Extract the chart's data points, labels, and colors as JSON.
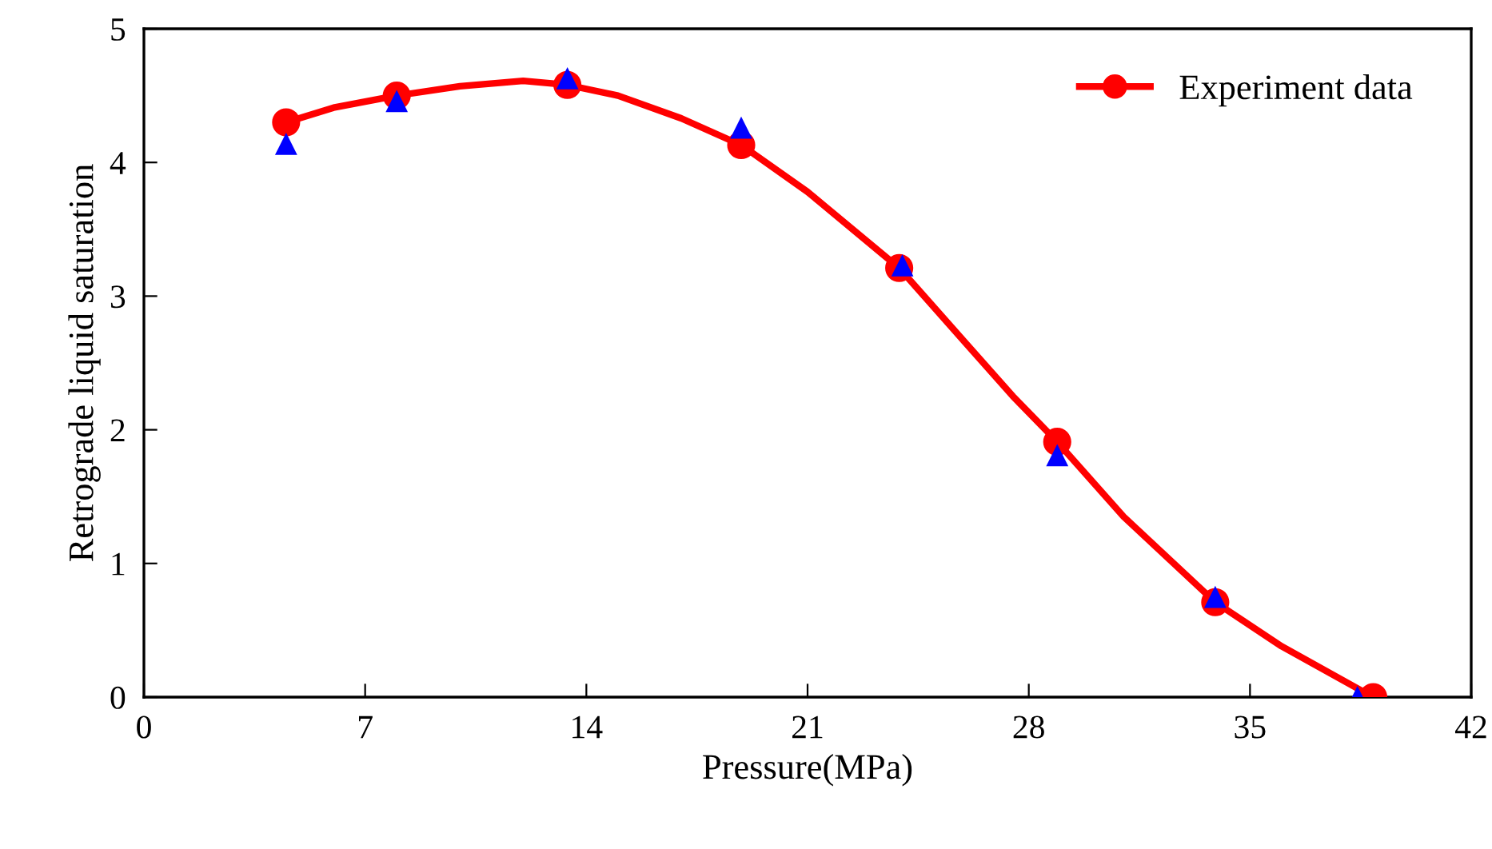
{
  "chart_data": {
    "type": "line",
    "xlabel": "Pressure(MPa)",
    "ylabel": "Retrograde liquid saturation",
    "xlim": [
      0,
      42
    ],
    "xticks": [
      0,
      7,
      14,
      21,
      28,
      35,
      42
    ],
    "ylim": [
      0,
      5
    ],
    "yticks": [
      0,
      1,
      2,
      3,
      4,
      5
    ],
    "grid": false,
    "legend": "top right",
    "series": [
      {
        "color": "#ff0000",
        "line_style": "solid",
        "marker": "none",
        "x": [
          4.5,
          6,
          8,
          10,
          12,
          13.4,
          15,
          17,
          18.9,
          21,
          23.9,
          26,
          27.5,
          28.9,
          31,
          33.9,
          36,
          38.9
        ],
        "values": [
          4.3,
          4.41,
          4.5,
          4.57,
          4.61,
          4.58,
          4.5,
          4.33,
          4.13,
          3.78,
          3.21,
          2.65,
          2.25,
          1.91,
          1.35,
          0.71,
          0.38,
          0
        ]
      },
      {
        "name": "Experiment data",
        "type": "scatter",
        "marker": "circle",
        "line_style": "solid",
        "color": "#ff0000",
        "x": [
          4.5,
          8.0,
          13.4,
          18.9,
          23.9,
          28.9,
          33.9,
          38.9
        ],
        "values": [
          4.3,
          4.5,
          4.58,
          4.13,
          3.21,
          1.91,
          0.71,
          0
        ]
      },
      {
        "type": "scatter",
        "marker": "triangle",
        "color": "#0000ff",
        "x": [
          4.5,
          8.0,
          13.4,
          18.9,
          24.0,
          28.9,
          33.9,
          38.4
        ],
        "values": [
          4.14,
          4.46,
          4.63,
          4.26,
          3.23,
          1.81,
          0.75,
          0
        ]
      }
    ]
  }
}
